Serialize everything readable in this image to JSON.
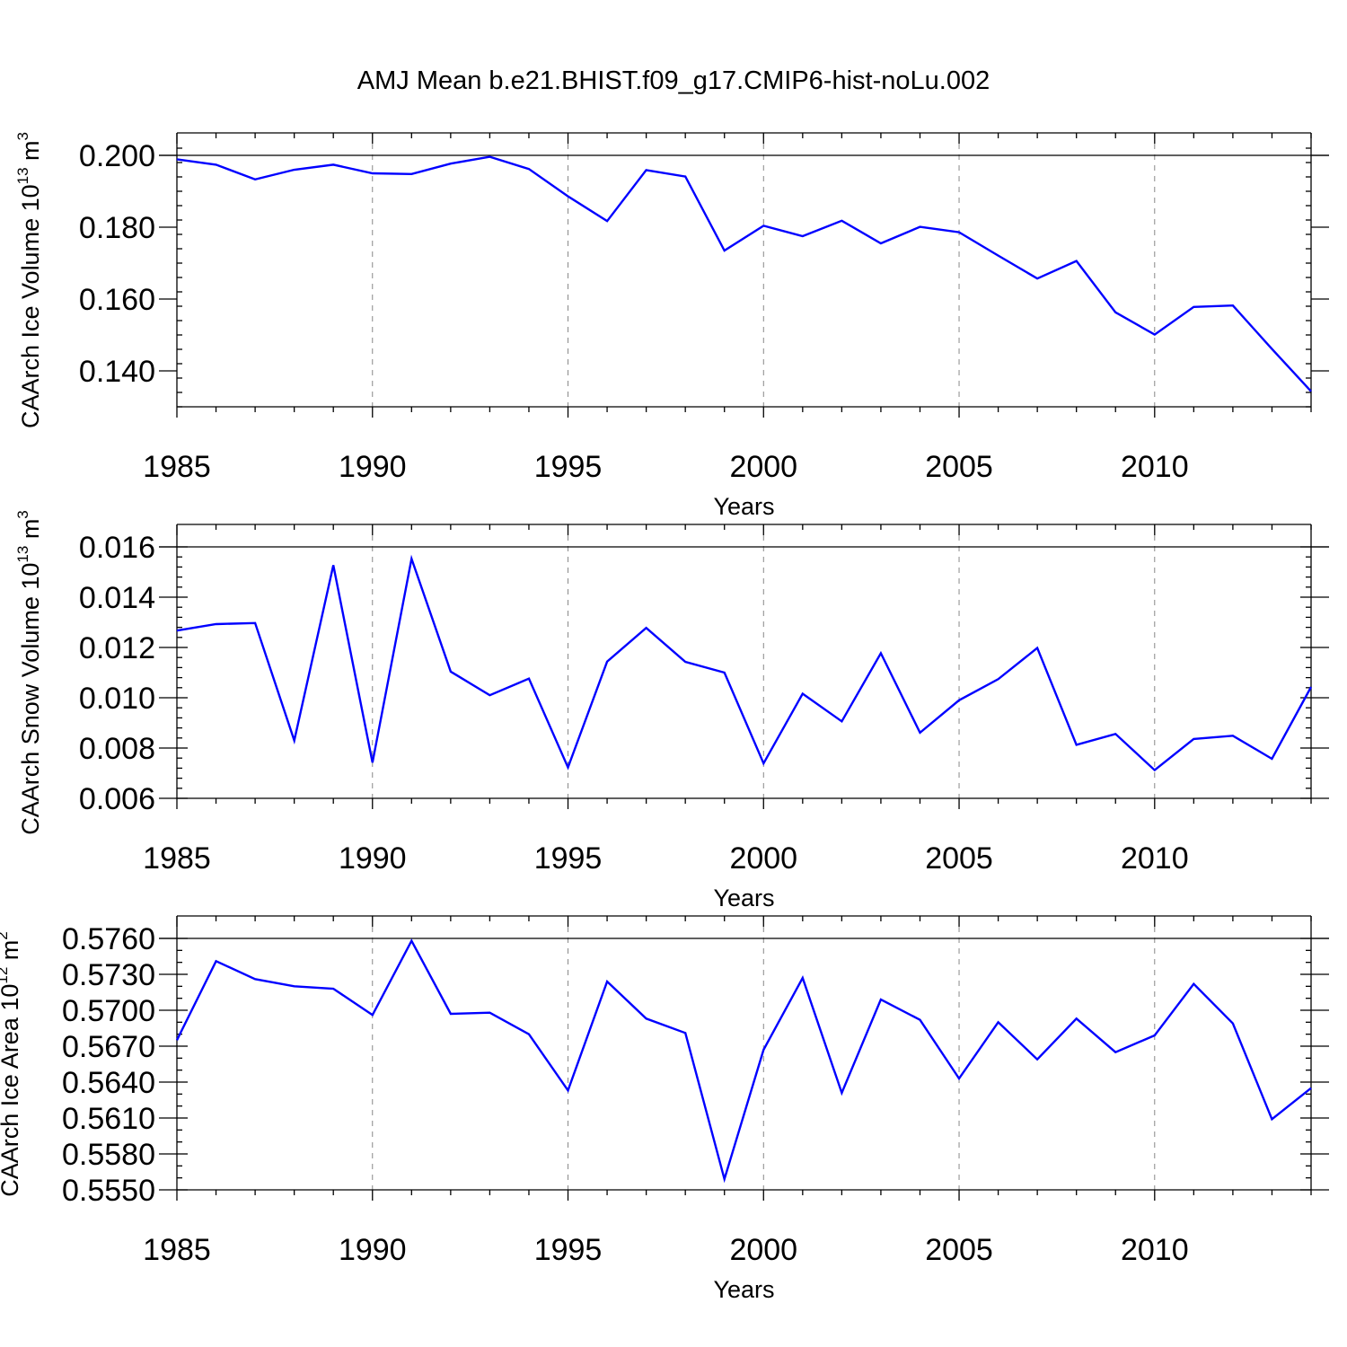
{
  "title": "AMJ Mean b.e21.BHIST.f09_g17.CMIP6-hist-noLu.002",
  "colors": {
    "line": "#0000ff",
    "axis": "#000000",
    "grid": "#888888"
  },
  "chart_data": [
    {
      "type": "line",
      "xlabel": "Years",
      "ylabel": {
        "text": "CAArch Ice Volume 10",
        "exp": "13",
        "unit": " m",
        "unit_exp": "3"
      },
      "xlim": [
        1985,
        2014
      ],
      "ylim": [
        0.13,
        0.2
      ],
      "x_ticks": [
        1985,
        1990,
        1995,
        2000,
        2005,
        2010
      ],
      "x_tick_labels": [
        "1985",
        "1990",
        "1995",
        "2000",
        "2005",
        "2010"
      ],
      "y_ticks": [
        0.14,
        0.16,
        0.18,
        0.2
      ],
      "y_tick_labels": [
        "0.140",
        "0.160",
        "0.180",
        "0.200"
      ],
      "y_minor_step": 0.004,
      "grid": "dashed vertical at major x ticks",
      "x": [
        1985,
        1986,
        1987,
        1988,
        1989,
        1990,
        1991,
        1992,
        1993,
        1994,
        1995,
        1996,
        1997,
        1998,
        1999,
        2000,
        2001,
        2002,
        2003,
        2004,
        2005,
        2006,
        2007,
        2008,
        2009,
        2010,
        2011,
        2012,
        2013,
        2014
      ],
      "series": [
        {
          "values": [
            0.1989,
            0.1974,
            0.1933,
            0.196,
            0.1974,
            0.195,
            0.1948,
            0.1977,
            0.1996,
            0.1962,
            0.1886,
            0.1817,
            0.1959,
            0.1941,
            0.1735,
            0.1804,
            0.1775,
            0.1818,
            0.1755,
            0.1801,
            0.1786,
            0.1721,
            0.1657,
            0.1706,
            0.1563,
            0.1501,
            0.1578,
            0.1582,
            0.1461,
            0.1343
          ]
        }
      ]
    },
    {
      "type": "line",
      "xlabel": "Years",
      "ylabel": {
        "text": "CAArch Snow Volume 10",
        "exp": "13",
        "unit": " m",
        "unit_exp": "3"
      },
      "xlim": [
        1985,
        2014
      ],
      "ylim": [
        0.006,
        0.016
      ],
      "x_ticks": [
        1985,
        1990,
        1995,
        2000,
        2005,
        2010
      ],
      "x_tick_labels": [
        "1985",
        "1990",
        "1995",
        "2000",
        "2005",
        "2010"
      ],
      "y_ticks": [
        0.006,
        0.008,
        0.01,
        0.012,
        0.014,
        0.016
      ],
      "y_tick_labels": [
        "0.006",
        "0.008",
        "0.010",
        "0.012",
        "0.014",
        "0.016"
      ],
      "y_minor_step": 0.0004,
      "grid": "dashed vertical at major x ticks",
      "x": [
        1985,
        1986,
        1987,
        1988,
        1989,
        1990,
        1991,
        1992,
        1993,
        1994,
        1995,
        1996,
        1997,
        1998,
        1999,
        2000,
        2001,
        2002,
        2003,
        2004,
        2005,
        2006,
        2007,
        2008,
        2009,
        2010,
        2011,
        2012,
        2013,
        2014
      ],
      "series": [
        {
          "values": [
            0.01267,
            0.01293,
            0.01297,
            0.0083,
            0.01527,
            0.00742,
            0.01553,
            0.01104,
            0.0101,
            0.01076,
            0.00723,
            0.01144,
            0.01278,
            0.01143,
            0.011,
            0.00739,
            0.01016,
            0.00906,
            0.01177,
            0.00861,
            0.0099,
            0.01074,
            0.01198,
            0.00813,
            0.00856,
            0.00712,
            0.00836,
            0.00849,
            0.00757,
            0.01043
          ]
        }
      ]
    },
    {
      "type": "line",
      "xlabel": "Years",
      "ylabel": {
        "text": "CAArch Ice Area 10",
        "exp": "12",
        "unit": " m",
        "unit_exp": "2"
      },
      "xlim": [
        1985,
        2014
      ],
      "ylim": [
        0.555,
        0.576
      ],
      "x_ticks": [
        1985,
        1990,
        1995,
        2000,
        2005,
        2010
      ],
      "x_tick_labels": [
        "1985",
        "1990",
        "1995",
        "2000",
        "2005",
        "2010"
      ],
      "y_ticks": [
        0.555,
        0.558,
        0.561,
        0.564,
        0.567,
        0.57,
        0.573,
        0.576
      ],
      "y_tick_labels": [
        "0.5550",
        "0.5580",
        "0.5610",
        "0.5640",
        "0.5670",
        "0.5700",
        "0.5730",
        "0.5760"
      ],
      "y_minor_step": 0.001,
      "grid": "dashed vertical at major x ticks",
      "x": [
        1985,
        1986,
        1987,
        1988,
        1989,
        1990,
        1991,
        1992,
        1993,
        1994,
        1995,
        1996,
        1997,
        1998,
        1999,
        2000,
        2001,
        2002,
        2003,
        2004,
        2005,
        2006,
        2007,
        2008,
        2009,
        2010,
        2011,
        2012,
        2013,
        2014
      ],
      "series": [
        {
          "values": [
            0.5675,
            0.5741,
            0.5726,
            0.572,
            0.5718,
            0.5696,
            0.5758,
            0.5697,
            0.5698,
            0.568,
            0.5633,
            0.5724,
            0.5693,
            0.5681,
            0.5559,
            0.5667,
            0.5727,
            0.5631,
            0.5709,
            0.5692,
            0.5643,
            0.569,
            0.5659,
            0.5693,
            0.5665,
            0.5679,
            0.5722,
            0.5689,
            0.5609,
            0.5635
          ]
        }
      ]
    }
  ]
}
